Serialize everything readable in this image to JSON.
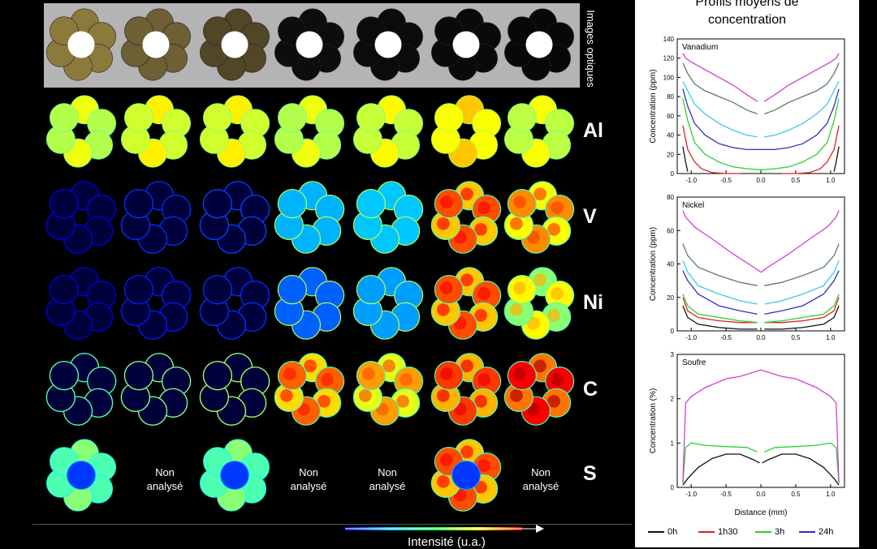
{
  "samples": 7,
  "optical_label": "Images optiques",
  "rows": [
    {
      "element": "Al",
      "tones": [
        0.55,
        0.58,
        0.58,
        0.55,
        0.57,
        0.62,
        0.56
      ],
      "analysed": [
        true,
        true,
        true,
        true,
        true,
        true,
        true
      ],
      "style": [
        "full",
        "full",
        "full",
        "full",
        "full",
        "full",
        "full"
      ]
    },
    {
      "element": "V",
      "tones": [
        0.05,
        0.12,
        0.14,
        0.3,
        0.32,
        0.72,
        0.66
      ],
      "analysed": [
        true,
        true,
        true,
        true,
        true,
        true,
        true
      ],
      "style": [
        "ring",
        "ring",
        "ring",
        "fill",
        "fill",
        "hot",
        "hot"
      ]
    },
    {
      "element": "Ni",
      "tones": [
        0.04,
        0.1,
        0.12,
        0.22,
        0.28,
        0.72,
        0.55
      ],
      "analysed": [
        true,
        true,
        true,
        true,
        true,
        true,
        true
      ],
      "style": [
        "ring",
        "ring",
        "ring",
        "fill",
        "fill",
        "hot",
        "hot"
      ]
    },
    {
      "element": "C",
      "tones": [
        0.4,
        0.45,
        0.48,
        0.7,
        0.64,
        0.74,
        0.8
      ],
      "analysed": [
        true,
        true,
        true,
        true,
        true,
        true,
        true
      ],
      "style": [
        "ring",
        "ring",
        "ring",
        "hot",
        "hot",
        "hot",
        "hot"
      ]
    },
    {
      "element": "S",
      "tones": [
        0.45,
        0,
        0.45,
        0,
        0,
        0.72,
        0
      ],
      "analysed": [
        true,
        false,
        true,
        false,
        false,
        true,
        false
      ],
      "style": [
        "full",
        "none",
        "full",
        "none",
        "none",
        "hot",
        "none"
      ]
    }
  ],
  "not_analysed": {
    "line1": "Non",
    "line2": "analysé"
  },
  "optical_tones": [
    {
      "pellet": "#8c7a3c",
      "center": "#ffffff"
    },
    {
      "pellet": "#6e5f34",
      "center": "#ffffff"
    },
    {
      "pellet": "#514625",
      "center": "#ffffff"
    },
    {
      "pellet": "#0d0d0d",
      "center": "#ffffff"
    },
    {
      "pellet": "#0b0b0b",
      "center": "#ffffff"
    },
    {
      "pellet": "#0a0a0a",
      "center": "#ffffff"
    },
    {
      "pellet": "#080808",
      "center": "#ffffff"
    }
  ],
  "colorbar": {
    "label": "Intensité (u.a.)",
    "colors": [
      "#0000ff",
      "#00c8ff",
      "#00ff50",
      "#ffff00",
      "#ff0000"
    ]
  },
  "right_title": {
    "line1": "Profils moyens de",
    "line2": "concentration"
  },
  "chart_data": [
    {
      "type": "line",
      "annotation": "Vanadium",
      "xlabel": "",
      "ylabel": "Concentration (ppm)",
      "xlim": [
        -1.2,
        1.2
      ],
      "ylim": [
        0,
        140
      ],
      "yticks": [
        "0",
        "20",
        "40",
        "60",
        "80",
        "100",
        "120",
        "140"
      ],
      "xticks": [
        "-1.0",
        "-0.5",
        "0.0",
        "0.5",
        "1.0"
      ],
      "series": [
        {
          "name": "0h",
          "color": "#111111",
          "x": [
            -1.12,
            -1.08,
            -1.05
          ],
          "y": [
            28,
            12,
            2
          ],
          "mirror": true
        },
        {
          "name": "1h30",
          "color": "#e02020",
          "x": [
            -1.12,
            -1.05,
            -0.95,
            -0.85,
            -0.7,
            -0.5,
            -0.3
          ],
          "y": [
            50,
            25,
            12,
            5,
            1,
            0,
            0
          ],
          "mirror": true
        },
        {
          "name": "3h",
          "color": "#30d030",
          "x": [
            -1.12,
            -1.05,
            -0.95,
            -0.8,
            -0.6,
            -0.4,
            -0.2,
            0.0
          ],
          "y": [
            78,
            55,
            32,
            20,
            12,
            7,
            5,
            4
          ],
          "mirror": true
        },
        {
          "name": "24h",
          "color": "#3030c0",
          "x": [
            -1.12,
            -1.05,
            -0.95,
            -0.8,
            -0.6,
            -0.4,
            -0.2,
            0.0
          ],
          "y": [
            88,
            70,
            52,
            40,
            31,
            27,
            25,
            25
          ],
          "mirror": true
        },
        {
          "name": "",
          "color": "#40c8e8",
          "x": [
            -1.12,
            -1.05,
            -0.95,
            -0.8,
            -0.6,
            -0.4,
            -0.2,
            -0.05
          ],
          "y": [
            96,
            86,
            72,
            62,
            52,
            45,
            40,
            38
          ],
          "mirror": true
        },
        {
          "name": "",
          "color": "#5a7a6a",
          "x": [
            -1.12,
            -1.05,
            -0.95,
            -0.8,
            -0.6,
            -0.4,
            -0.2,
            -0.05
          ],
          "y": [
            115,
            104,
            93,
            86,
            80,
            74,
            66,
            62
          ],
          "mirror": true
        },
        {
          "name": "",
          "color": "#d040d0",
          "x": [
            -1.12,
            -1.08,
            -1.0,
            -0.85,
            -0.6,
            -0.4,
            -0.2,
            -0.05
          ],
          "y": [
            125,
            120,
            116,
            110,
            100,
            92,
            82,
            75
          ],
          "mirror": true
        }
      ]
    },
    {
      "type": "line",
      "annotation": "Nickel",
      "xlabel": "",
      "ylabel": "Concentration (ppm)",
      "xlim": [
        -1.2,
        1.2
      ],
      "ylim": [
        0,
        80
      ],
      "yticks": [
        "0",
        "20",
        "40",
        "60",
        "80"
      ],
      "xticks": [
        "-1.0",
        "-0.5",
        "0.0",
        "0.5",
        "1.0"
      ],
      "series": [
        {
          "name": "0h",
          "color": "#111111",
          "x": [
            -1.12,
            -1.05,
            -0.9,
            -0.6,
            -0.3,
            -0.05
          ],
          "y": [
            15,
            8,
            4,
            2,
            1,
            1
          ],
          "mirror": true
        },
        {
          "name": "1h30",
          "color": "#e02020",
          "x": [
            -1.12,
            -1.05,
            -0.9,
            -0.6,
            -0.3,
            -0.05
          ],
          "y": [
            20,
            12,
            8,
            6,
            5,
            5
          ],
          "mirror": true
        },
        {
          "name": "3h",
          "color": "#30d030",
          "x": [
            -1.12,
            -1.05,
            -0.9,
            -0.6,
            -0.3,
            -0.05
          ],
          "y": [
            22,
            15,
            10,
            8,
            6,
            5
          ],
          "mirror": true
        },
        {
          "name": "24h",
          "color": "#3030c0",
          "x": [
            -1.12,
            -1.05,
            -0.9,
            -0.6,
            -0.3,
            -0.05
          ],
          "y": [
            36,
            30,
            22,
            15,
            12,
            10
          ],
          "mirror": true
        },
        {
          "name": "",
          "color": "#40c8e8",
          "x": [
            -1.12,
            -1.05,
            -0.9,
            -0.6,
            -0.3,
            -0.05
          ],
          "y": [
            42,
            35,
            27,
            22,
            18,
            16
          ],
          "mirror": true
        },
        {
          "name": "",
          "color": "#5a7a6a",
          "x": [
            -1.12,
            -1.05,
            -0.9,
            -0.6,
            -0.3,
            -0.05
          ],
          "y": [
            52,
            45,
            38,
            33,
            29,
            27
          ],
          "mirror": true
        },
        {
          "name": "",
          "color": "#d040d0",
          "x": [
            -1.12,
            -1.08,
            -0.95,
            -0.7,
            -0.4,
            -0.1,
            0.0
          ],
          "y": [
            72,
            68,
            62,
            55,
            46,
            38,
            35
          ],
          "mirror": true
        }
      ]
    },
    {
      "type": "line",
      "annotation": "Soufre",
      "xlabel": "Distance (mm)",
      "ylabel": "Concentration (%)",
      "xlim": [
        -1.2,
        1.2
      ],
      "ylim": [
        0,
        3
      ],
      "yticks": [
        "0",
        "1",
        "2",
        "3"
      ],
      "xticks": [
        "-1.0",
        "-0.5",
        "0.0",
        "0.5",
        "1.0"
      ],
      "series": [
        {
          "name": "0h",
          "color": "#111111",
          "x": [
            -1.12,
            -1.05,
            -0.9,
            -0.7,
            -0.5,
            -0.3,
            -0.1,
            -0.02
          ],
          "y": [
            0.05,
            0.2,
            0.45,
            0.65,
            0.75,
            0.75,
            0.62,
            0.55
          ],
          "mirror": true
        },
        {
          "name": "3h",
          "color": "#30d030",
          "x": [
            -1.12,
            -1.08,
            -1.0,
            -0.8,
            -0.5,
            -0.2,
            -0.05
          ],
          "y": [
            0.1,
            0.9,
            1.0,
            0.95,
            0.92,
            0.9,
            0.8
          ],
          "mirror": true
        },
        {
          "name": "",
          "color": "#d040d0",
          "x": [
            -1.12,
            -1.08,
            -1.0,
            -0.8,
            -0.5,
            -0.3,
            -0.1,
            0.0
          ],
          "y": [
            0.1,
            1.9,
            2.05,
            2.25,
            2.45,
            2.5,
            2.6,
            2.65
          ],
          "mirror": true
        }
      ]
    }
  ],
  "legend": [
    {
      "label": "0h",
      "color": "#111111"
    },
    {
      "label": "1h30",
      "color": "#e02020"
    },
    {
      "label": "3h",
      "color": "#30d030"
    },
    {
      "label": "24h",
      "color": "#3030c0"
    }
  ]
}
